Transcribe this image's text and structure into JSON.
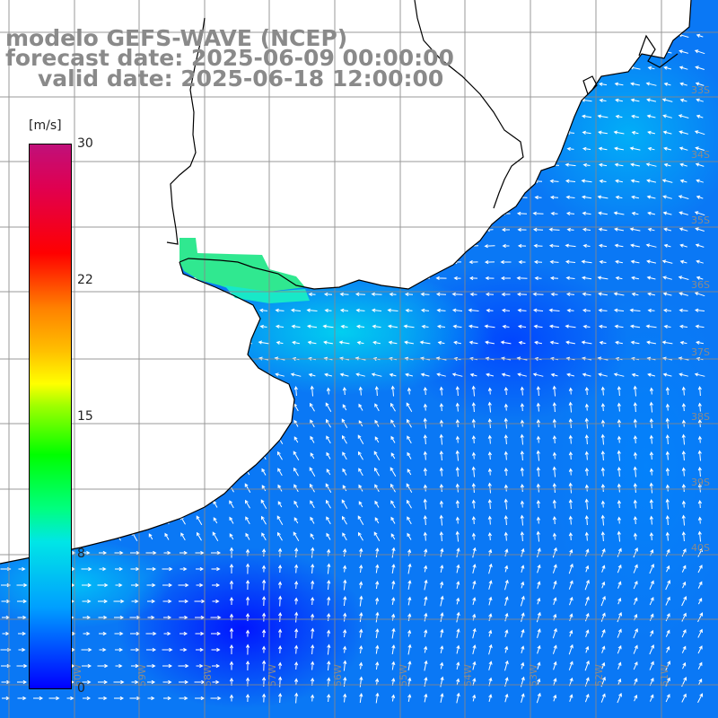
{
  "title": {
    "line1": "modelo GEFS-WAVE (NCEP)",
    "line2": "forecast date: 2025-06-09 00:00:00",
    "line3": "valid date: 2025-06-18 12:00:00"
  },
  "colorbar": {
    "unit": "[m/s]",
    "ticks": [
      "30",
      "22",
      "15",
      "8",
      "0"
    ],
    "tick_values": [
      30,
      22,
      15,
      8,
      0
    ],
    "min": 0,
    "max": 30
  },
  "lat_labels": [
    "33S",
    "34S",
    "35S",
    "36S",
    "37S",
    "38S",
    "39S",
    "40S"
  ],
  "lon_labels": [
    "60W",
    "59W",
    "58W",
    "57W",
    "56W",
    "55W",
    "54W",
    "53W",
    "52W",
    "51W"
  ],
  "colors": {
    "land": "#ffffff",
    "grid": "#888888",
    "coast": "#000000",
    "arrows": "#ffffff",
    "title": "#8a8a8a"
  }
}
